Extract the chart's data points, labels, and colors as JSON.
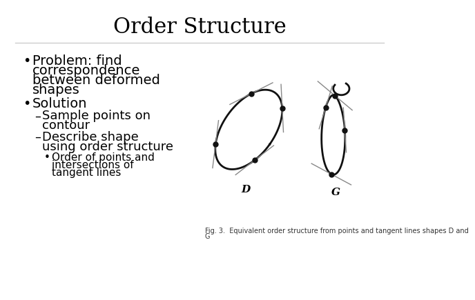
{
  "title": "Order Structure",
  "title_fontsize": 22,
  "title_font": "DejaVu Serif",
  "bg_color": "#ffffff",
  "text_color": "#000000",
  "bullet1_line1": "Problem: find",
  "bullet1_line2": "correspondence",
  "bullet1_line3": "between deformed",
  "bullet1_line4": "shapes",
  "bullet2": "Solution",
  "sub1_line1": "Sample points on",
  "sub1_line2": "contour",
  "sub2_line1": "Describe shape",
  "sub2_line2": "using order structure",
  "subsub1_line1": "Order of points and",
  "subsub1_line2": "intersections of",
  "subsub1_line3": "tangent lines",
  "fig_caption_line1": "Fig. 3.  Equivalent order structure from points and tangent lines shapes D and",
  "fig_caption_line2": "G",
  "label_D": "D",
  "label_G": "G",
  "shape_lw": 2.0,
  "tangent_lw": 1.0,
  "tangent_color": "#888888",
  "shape_color": "#111111",
  "dot_size": 5
}
